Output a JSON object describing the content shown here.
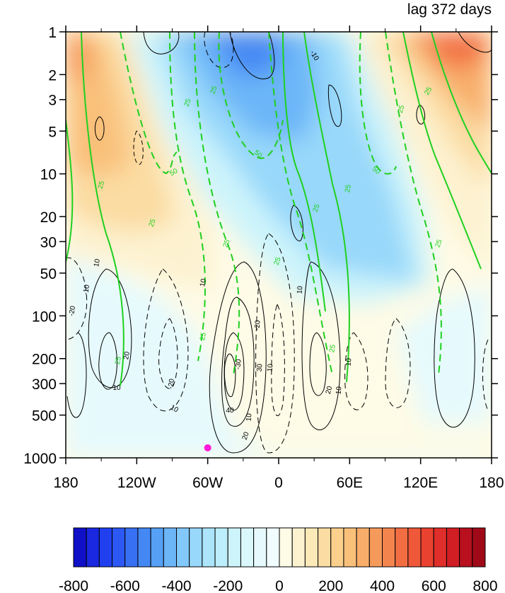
{
  "chart_data": {
    "type": "heatmap",
    "title_right": "lag 372 days",
    "x_ticks": [
      "180",
      "120W",
      "60W",
      "0",
      "60E",
      "120E",
      "180"
    ],
    "x_values": [
      -180,
      -120,
      -60,
      0,
      60,
      120,
      180
    ],
    "y_ticks": [
      "1",
      "2",
      "3",
      "5",
      "10",
      "20",
      "30",
      "50",
      "100",
      "200",
      "300",
      "500",
      "1000"
    ],
    "y_values": [
      1,
      2,
      3,
      5,
      10,
      20,
      30,
      50,
      100,
      200,
      300,
      500,
      1000
    ],
    "y_scale": "log",
    "y_reversed": true,
    "xlim": [
      -180,
      180
    ],
    "ylim": [
      1,
      1000
    ],
    "colorbar": {
      "levels": [
        -800,
        -750,
        -700,
        -650,
        -600,
        -550,
        -500,
        -450,
        -400,
        -350,
        -300,
        -250,
        -200,
        -150,
        -100,
        -50,
        0,
        50,
        100,
        150,
        200,
        250,
        300,
        350,
        400,
        450,
        500,
        550,
        600,
        650,
        700,
        750,
        800
      ],
      "tick_labels": [
        "-800",
        "-600",
        "-400",
        "-200",
        "0",
        "200",
        "400",
        "600",
        "800"
      ],
      "tick_values": [
        -800,
        -600,
        -400,
        -200,
        0,
        200,
        400,
        600,
        800
      ],
      "colors": [
        "#1010c8",
        "#1a28e0",
        "#2040f0",
        "#2c58f4",
        "#3870f4",
        "#4488f4",
        "#56a0f6",
        "#6cb6f8",
        "#82c8fa",
        "#98d8fa",
        "#acE4fa",
        "#bdeefb",
        "#cdf4fb",
        "#daf8fc",
        "#e6fafd",
        "#f0fcfe",
        "#fefbe6",
        "#fdf2d0",
        "#fce9b8",
        "#fbdca2",
        "#fad08c",
        "#f9c07a",
        "#f8ae6a",
        "#f69a5c",
        "#f4844e",
        "#f26e42",
        "#ef5838",
        "#ea4230",
        "#e02e2a",
        "#d01e24",
        "#b8101e",
        "#a00a18"
      ]
    },
    "contour_labels_black": [
      "10",
      "10",
      "10",
      "10",
      "10",
      "10",
      "10",
      "10",
      "-10",
      "20",
      "20",
      "20",
      "-20",
      "-20",
      "-20",
      "30",
      "-30",
      "40",
      "-10",
      "10"
    ],
    "contour_labels_green": [
      "25",
      "25",
      "25",
      "25",
      "25",
      "25",
      "25",
      "25",
      "25",
      "25",
      "25",
      "25",
      "25",
      "25",
      "50",
      "50",
      "50"
    ],
    "marker": {
      "lon": -60,
      "lev": 850,
      "color": "#ff1ad9"
    }
  }
}
